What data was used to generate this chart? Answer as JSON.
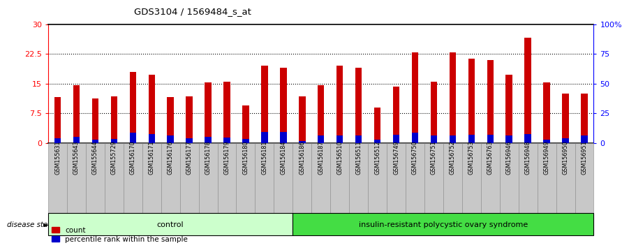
{
  "title": "GDS3104 / 1569484_s_at",
  "samples": [
    "GSM155631",
    "GSM155643",
    "GSM155644",
    "GSM155729",
    "GSM156170",
    "GSM156171",
    "GSM156176",
    "GSM156177",
    "GSM156178",
    "GSM156179",
    "GSM156180",
    "GSM156181",
    "GSM156184",
    "GSM156186",
    "GSM156187",
    "GSM156510",
    "GSM156511",
    "GSM156512",
    "GSM156749",
    "GSM156750",
    "GSM156751",
    "GSM156752",
    "GSM156753",
    "GSM156763",
    "GSM156946",
    "GSM156948",
    "GSM156949",
    "GSM156950",
    "GSM156951"
  ],
  "counts": [
    11.5,
    14.5,
    11.2,
    11.8,
    18.0,
    17.2,
    11.5,
    11.8,
    15.3,
    15.5,
    9.5,
    19.5,
    19.0,
    11.8,
    14.5,
    19.5,
    19.0,
    9.0,
    14.3,
    22.8,
    15.5,
    22.8,
    21.2,
    21.0,
    17.3,
    26.5,
    15.3,
    12.5,
    12.5
  ],
  "percentile_ranks": [
    1.2,
    1.5,
    0.8,
    1.0,
    2.5,
    2.2,
    1.8,
    1.2,
    1.5,
    1.3,
    1.0,
    2.8,
    2.8,
    0.5,
    1.8,
    1.8,
    1.8,
    0.8,
    2.0,
    2.5,
    1.8,
    1.8,
    2.0,
    2.0,
    1.8,
    2.2,
    0.8,
    1.2,
    1.8
  ],
  "group_labels": [
    "control",
    "insulin-resistant polycystic ovary syndrome"
  ],
  "group_sizes": [
    13,
    16
  ],
  "left_yticks": [
    0,
    7.5,
    15,
    22.5,
    30
  ],
  "right_yticklabels": [
    "0",
    "25",
    "50",
    "75",
    "100%"
  ],
  "bar_color_red": "#CC0000",
  "bar_color_blue": "#0000CC",
  "ctrl_color": "#CCFFCC",
  "pcos_color": "#44DD44",
  "tick_label_bg": "#C8C8C8"
}
